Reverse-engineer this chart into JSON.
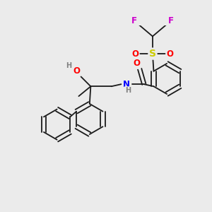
{
  "background_color": "#ebebeb",
  "bond_color": "#1a1a1a",
  "atom_colors": {
    "O": "#ff0000",
    "N": "#0000ff",
    "S": "#cccc00",
    "F": "#cc00cc",
    "H": "#808080",
    "C": "#1a1a1a"
  },
  "figsize": [
    3.0,
    3.0
  ],
  "dpi": 100
}
